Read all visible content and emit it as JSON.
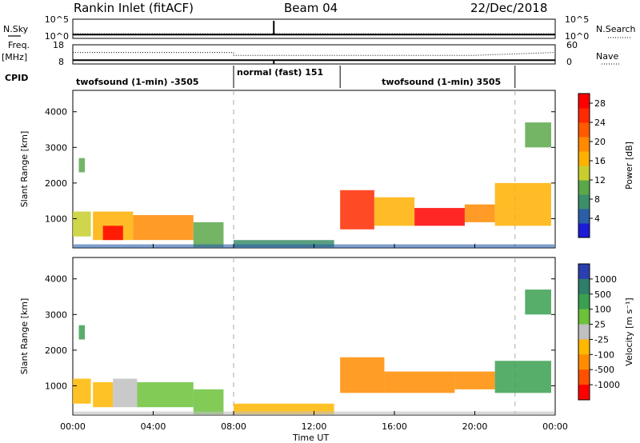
{
  "header": {
    "station": "Rankin Inlet (fitACF)",
    "beam": "Beam 04",
    "date": "22/Dec/2018"
  },
  "left_labels": {
    "nsky": "N.Sky",
    "freq": "Freq.",
    "freq_unit": "[MHz]",
    "cpid": "CPID"
  },
  "right_labels": {
    "nsearch": "N.Search",
    "nave": "Nave"
  },
  "cpid_segments": [
    {
      "label": "twofsound (1-min) -3505",
      "start_h": 0,
      "end_h": 8
    },
    {
      "label": "normal (fast) 151",
      "start_h": 8,
      "end_h": 13.3
    },
    {
      "label": "twofsound (1-min) 3505",
      "start_h": 13.3,
      "end_h": 24
    }
  ],
  "colorbars": {
    "power": {
      "label": "Power [dB]",
      "ticks": [
        "4",
        "8",
        "12",
        "16",
        "20",
        "24",
        "28"
      ],
      "colors": [
        "#1c1cd6",
        "#2a5fa8",
        "#3d8e6a",
        "#5aa84a",
        "#c8cf2d",
        "#ffb000",
        "#ff8a00",
        "#ff5a00",
        "#ff2a00",
        "#ff0000"
      ]
    },
    "velocity": {
      "label": "Velocity [m s⁻¹]",
      "ticks": [
        "1000",
        "500",
        "100",
        "25",
        "-25",
        "-100",
        "-500",
        "-1000"
      ],
      "colors": [
        "#2b3fb0",
        "#2e7e6a",
        "#3aa050",
        "#6cc23a",
        "#c0c0c0",
        "#ffb700",
        "#ff8c00",
        "#ff5000",
        "#ff0000"
      ]
    }
  },
  "chart_data": [
    {
      "type": "line",
      "title": "N.Sky / N.Search",
      "ytick_labels": [
        "10^5",
        "10^0"
      ],
      "y2tick_labels": [
        "10^5",
        "10^0"
      ],
      "x": [
        0,
        4,
        8,
        10,
        12,
        16,
        20,
        24
      ],
      "series": [
        {
          "name": "N.Sky",
          "values": [
            1.0,
            1.0,
            1.0,
            1.0,
            1.0,
            1.0,
            1.0,
            1.0
          ]
        },
        {
          "name": "N.Search",
          "values": [
            1.2,
            1.2,
            1.2,
            1.2,
            1.2,
            1.2,
            1.2,
            1.2
          ]
        }
      ]
    },
    {
      "type": "line",
      "title": "Freq. / Nave",
      "yticks": [
        8,
        18
      ],
      "ylim": [
        8,
        18
      ],
      "y2ticks": [
        0,
        60
      ],
      "x": [
        0,
        4,
        8,
        8.01,
        12,
        16,
        20,
        24
      ],
      "series": [
        {
          "name": "Freq.",
          "values": [
            10.0,
            10.0,
            10.0,
            10.0,
            10.0,
            10.0,
            10.0,
            10.0
          ]
        },
        {
          "name": "Nave",
          "values": [
            14.0,
            14.0,
            14.0,
            12.5,
            12.5,
            12.5,
            12.5,
            14.0
          ]
        }
      ]
    },
    {
      "type": "heatmap",
      "title": "Power",
      "ylabel": "Slant Range [km]",
      "yticks": [
        1000,
        2000,
        3000,
        4000
      ],
      "ylim": [
        180,
        4600
      ],
      "xlim": [
        0,
        24
      ],
      "colorbar_label": "Power [dB]",
      "regions": [
        {
          "t0": 0.0,
          "t1": 0.9,
          "r0": 500,
          "r1": 1200,
          "value": 14
        },
        {
          "t0": 0.3,
          "t1": 0.6,
          "r0": 2300,
          "r1": 2700,
          "value": 10
        },
        {
          "t0": 1.0,
          "t1": 3.0,
          "r0": 400,
          "r1": 1200,
          "value": 18
        },
        {
          "t0": 1.5,
          "t1": 2.5,
          "r0": 400,
          "r1": 800,
          "value": 28
        },
        {
          "t0": 3.0,
          "t1": 6.0,
          "r0": 400,
          "r1": 1100,
          "value": 20
        },
        {
          "t0": 6.0,
          "t1": 7.5,
          "r0": 200,
          "r1": 900,
          "value": 12
        },
        {
          "t0": 8.0,
          "t1": 13.0,
          "r0": 200,
          "r1": 400,
          "value": 8
        },
        {
          "t0": 13.3,
          "t1": 15.0,
          "r0": 700,
          "r1": 1800,
          "value": 26
        },
        {
          "t0": 15.0,
          "t1": 17.0,
          "r0": 800,
          "r1": 1600,
          "value": 18
        },
        {
          "t0": 17.0,
          "t1": 19.5,
          "r0": 800,
          "r1": 1300,
          "value": 30
        },
        {
          "t0": 19.5,
          "t1": 21.0,
          "r0": 900,
          "r1": 1400,
          "value": 20
        },
        {
          "t0": 21.0,
          "t1": 23.8,
          "r0": 800,
          "r1": 2000,
          "value": 16
        },
        {
          "t0": 22.5,
          "t1": 23.8,
          "r0": 3000,
          "r1": 3700,
          "value": 12
        }
      ]
    },
    {
      "type": "heatmap",
      "title": "Velocity",
      "ylabel": "Slant Range [km]",
      "yticks": [
        1000,
        2000,
        3000,
        4000
      ],
      "ylim": [
        180,
        4600
      ],
      "xlim": [
        0,
        24
      ],
      "colorbar_label": "Velocity [m s⁻¹]",
      "regions": [
        {
          "t0": 0.0,
          "t1": 0.9,
          "r0": 500,
          "r1": 1200,
          "value": -100
        },
        {
          "t0": 0.3,
          "t1": 0.6,
          "r0": 2300,
          "r1": 2700,
          "value": 200
        },
        {
          "t0": 1.0,
          "t1": 2.0,
          "r0": 400,
          "r1": 1100,
          "value": -80
        },
        {
          "t0": 2.0,
          "t1": 3.2,
          "r0": 400,
          "r1": 1200,
          "value": 0
        },
        {
          "t0": 3.2,
          "t1": 6.0,
          "r0": 400,
          "r1": 1100,
          "value": 80
        },
        {
          "t0": 6.0,
          "t1": 7.5,
          "r0": 200,
          "r1": 900,
          "value": 50
        },
        {
          "t0": 8.0,
          "t1": 13.0,
          "r0": 200,
          "r1": 500,
          "value": -60
        },
        {
          "t0": 13.3,
          "t1": 15.5,
          "r0": 800,
          "r1": 1800,
          "value": -200
        },
        {
          "t0": 15.5,
          "t1": 19.0,
          "r0": 800,
          "r1": 1400,
          "value": -150
        },
        {
          "t0": 19.0,
          "t1": 21.0,
          "r0": 900,
          "r1": 1400,
          "value": -300
        },
        {
          "t0": 21.0,
          "t1": 23.8,
          "r0": 800,
          "r1": 1700,
          "value": 100
        },
        {
          "t0": 22.5,
          "t1": 23.8,
          "r0": 3000,
          "r1": 3700,
          "value": 150
        }
      ]
    }
  ],
  "x_axis": {
    "label": "Time UT",
    "ticks": [
      "00:00",
      "04:00",
      "08:00",
      "12:00",
      "16:00",
      "20:00",
      "00:00"
    ]
  }
}
